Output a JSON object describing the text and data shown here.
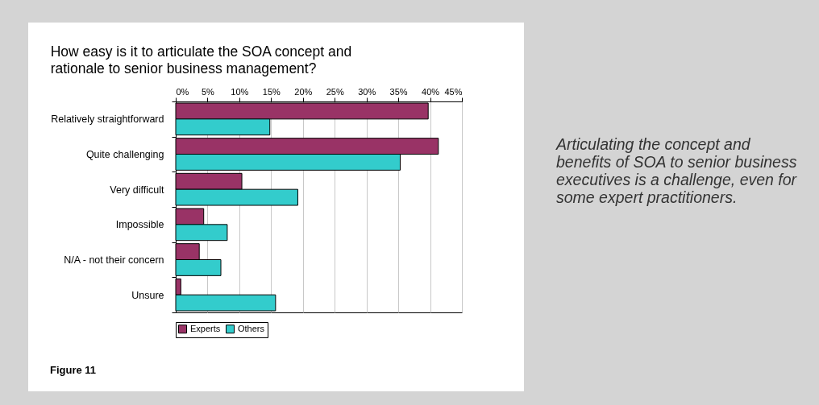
{
  "chart_data": {
    "type": "bar",
    "orientation": "horizontal",
    "title": "How easy is it to articulate the SOA concept and rationale to senior business management?",
    "categories": [
      "Relatively straightforward",
      "Quite challenging",
      "Very difficult",
      "Impossible",
      "N/A - not their concern",
      "Unsure"
    ],
    "series": [
      {
        "name": "Experts",
        "color": "#993366",
        "values": [
          39.7,
          41.3,
          10.4,
          4.4,
          3.7,
          0.8
        ]
      },
      {
        "name": "Others",
        "color": "#33cccc",
        "values": [
          14.8,
          35.3,
          19.2,
          8.1,
          7.1,
          15.7
        ]
      }
    ],
    "xlim": [
      0,
      45
    ],
    "xticks": [
      {
        "value": 0,
        "label": "0%"
      },
      {
        "value": 5,
        "label": "5%"
      },
      {
        "value": 10,
        "label": "10%"
      },
      {
        "value": 15,
        "label": "15%"
      },
      {
        "value": 20,
        "label": "20%"
      },
      {
        "value": 25,
        "label": "25%"
      },
      {
        "value": 30,
        "label": "30%"
      },
      {
        "value": 35,
        "label": "35%"
      },
      {
        "value": 40,
        "label": "40%"
      },
      {
        "value": 45,
        "label": "45%"
      }
    ],
    "grid": "x",
    "legend": "bottom",
    "annotations": [
      "Figure 11",
      "Articulating the concept and benefits of SOA to senior business executives is a challenge, even for some expert practitioners."
    ]
  }
}
